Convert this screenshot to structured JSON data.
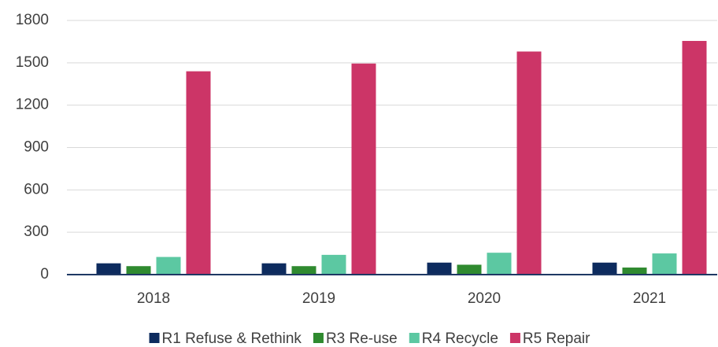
{
  "chart_data": {
    "type": "bar",
    "categories": [
      "2018",
      "2019",
      "2020",
      "2021"
    ],
    "series": [
      {
        "name": "R1 Refuse & Rethink",
        "color": "#0d2b5e",
        "values": [
          80,
          80,
          85,
          85
        ]
      },
      {
        "name": "R3 Re-use",
        "color": "#2f8a2f",
        "values": [
          60,
          60,
          70,
          50
        ]
      },
      {
        "name": "R4 Recycle",
        "color": "#5cc8a2",
        "values": [
          125,
          140,
          155,
          150
        ]
      },
      {
        "name": "R5 Repair",
        "color": "#cc3567",
        "values": [
          1440,
          1495,
          1580,
          1655
        ]
      }
    ],
    "ylim": [
      0,
      1800
    ],
    "yticks": [
      0,
      300,
      600,
      900,
      1200,
      1500,
      1800
    ],
    "grid": true,
    "legend": "bottom"
  }
}
